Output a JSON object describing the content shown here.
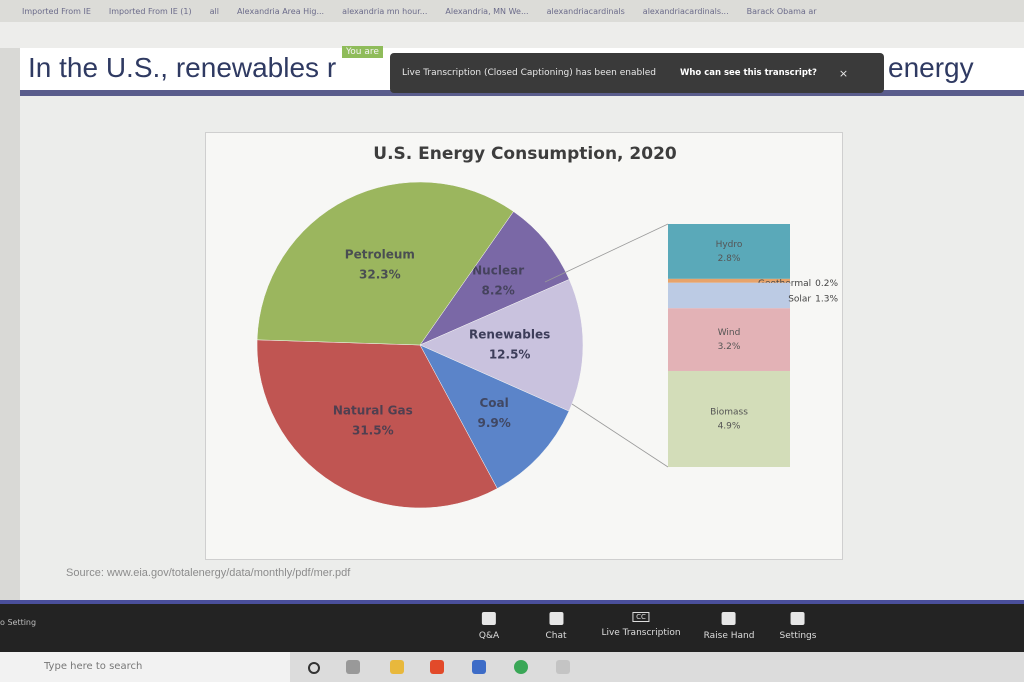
{
  "browser": {
    "bookmarks": [
      "Imported From IE",
      "Imported From IE (1)",
      "all",
      "Alexandria Area Hig...",
      "alexandria mn hour...",
      "Alexandria, MN We...",
      "alexandriacardinals",
      "alexandriacardinals...",
      "Barack Obama ar"
    ]
  },
  "slide": {
    "title_start": "In the U.S., renewables r",
    "title_end": "energy",
    "source": "Source: www.eia.gov/totalenergy/data/monthly/pdf/mer.pdf"
  },
  "meeting": {
    "banner": "You are",
    "notice": "Live Transcription (Closed Captioning) has been enabled",
    "notice_link": "Who can see this transcript?",
    "notice_close": "×",
    "audio": "o Setting",
    "cc": "CC",
    "toolbar": [
      "Q&A",
      "Chat",
      "Live Transcription",
      "Raise Hand",
      "Settings"
    ]
  },
  "taskbar": {
    "search": "Type here to search"
  },
  "chart_data": [
    {
      "type": "pie",
      "title": "U.S. Energy Consumption, 2020",
      "categories": [
        "Nuclear",
        "Renewables",
        "Coal",
        "Natural Gas",
        "Petroleum"
      ],
      "values": [
        8.2,
        12.5,
        9.9,
        31.5,
        32.3
      ],
      "value_labels": [
        "8.2%",
        "12.5%",
        "9.9%",
        "31.5%",
        "32.3%"
      ],
      "colors": [
        "#7a68a6",
        "#c9c2de",
        "#5b84c9",
        "#c05552",
        "#9bb65e"
      ]
    },
    {
      "type": "stacked-bar",
      "categories": [
        "Hydro",
        "Geothermal",
        "Solar",
        "Wind",
        "Biomass"
      ],
      "values": [
        2.8,
        0.2,
        1.3,
        3.2,
        4.9
      ],
      "value_labels": [
        "2.8%",
        "0.2%",
        "1.3%",
        "3.2%",
        "4.9%"
      ],
      "colors": [
        "#5aa9b9",
        "#e7a36a",
        "#bccbe4",
        "#e3b2b6",
        "#d3ddb9"
      ]
    }
  ]
}
